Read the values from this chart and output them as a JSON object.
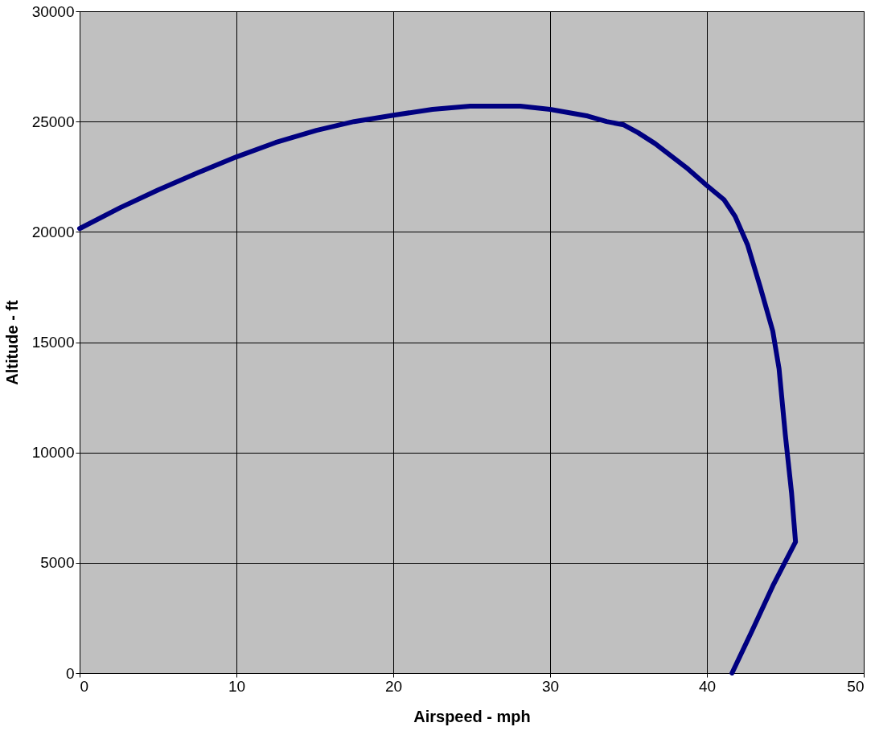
{
  "chart_data": {
    "type": "line",
    "xlabel": "Airspeed - mph",
    "ylabel": "Altitude - ft",
    "xlim": [
      0,
      50
    ],
    "ylim": [
      0,
      30000
    ],
    "xticks": [
      0,
      10,
      20,
      30,
      40,
      50
    ],
    "yticks": [
      0,
      5000,
      10000,
      15000,
      20000,
      25000,
      30000
    ],
    "grid": true,
    "marker": "none",
    "line_style": "solid",
    "series": [
      {
        "color": "#000080",
        "x": [
          0,
          2.6,
          5,
          7.6,
          10,
          12.5,
          15.1,
          17.5,
          20.1,
          22.5,
          24.9,
          26.3,
          28.1,
          30,
          32.4,
          33.6,
          34.7,
          35.6,
          36.7,
          38.8,
          40,
          41.1,
          41.8,
          42.6,
          43.4,
          44.2,
          44.6,
          45,
          45.4,
          45.65,
          44.2,
          42.9,
          41.6
        ],
        "values": [
          20150,
          21100,
          21900,
          22700,
          23400,
          24050,
          24600,
          25000,
          25300,
          25550,
          25700,
          25700,
          25700,
          25550,
          25250,
          25000,
          24850,
          24500,
          24000,
          22850,
          22100,
          21450,
          20700,
          19400,
          17500,
          15500,
          13800,
          10800,
          8150,
          5950,
          3950,
          1950,
          0
        ]
      }
    ]
  }
}
